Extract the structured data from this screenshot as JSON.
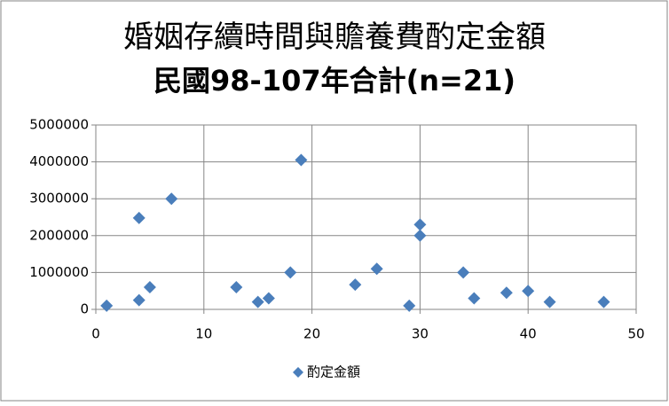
{
  "chart_data": {
    "type": "scatter",
    "title": "婚姻存續時間與贍養費酌定金額",
    "subtitle": "民國98-107年合計(n=21)",
    "series": [
      {
        "name": "酌定金額",
        "color": "#4a7ebb",
        "x": [
          1,
          4,
          4,
          5,
          7,
          13,
          15,
          16,
          18,
          19,
          24,
          26,
          29,
          30,
          30,
          34,
          35,
          38,
          40,
          42,
          47
        ],
        "values": [
          100000,
          2480000,
          250000,
          600000,
          3000000,
          600000,
          200000,
          300000,
          1000000,
          4050000,
          670000,
          1100000,
          100000,
          2300000,
          2000000,
          1000000,
          300000,
          450000,
          500000,
          200000,
          200000
        ]
      }
    ],
    "xlim": [
      0,
      50
    ],
    "xticks": [
      0,
      10,
      20,
      30,
      40,
      50
    ],
    "ylim": [
      0,
      5000000
    ],
    "yticks": [
      0,
      1000000,
      2000000,
      3000000,
      4000000,
      5000000
    ],
    "grid": true,
    "legend": "bottom"
  }
}
